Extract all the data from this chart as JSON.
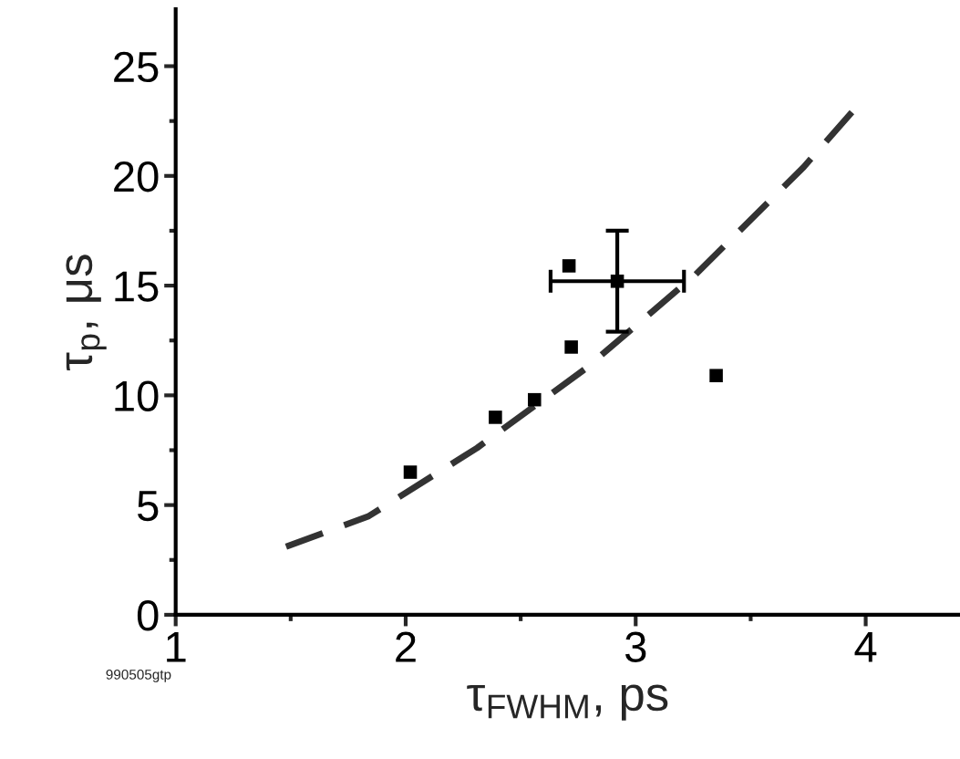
{
  "chart_data": {
    "type": "scatter",
    "xlabel": "τ$_{FWHM}$, ps",
    "ylabel": "τ$_{p}$, μs",
    "annotations": [
      "990505gtp"
    ],
    "marker": "square",
    "grid": false,
    "legend": false,
    "xlim": [
      1,
      4.41
    ],
    "ylim": [
      0,
      27.6
    ],
    "xticks": [
      1,
      {
        "value": 1.5,
        "label": null
      },
      2,
      {
        "value": 2.5,
        "label": null
      },
      3,
      {
        "value": 3.5,
        "label": null
      },
      4
    ],
    "yticks": [
      0,
      {
        "value": 2.5,
        "label": null
      },
      5,
      {
        "value": 7.5,
        "label": null
      },
      10,
      {
        "value": 12.5,
        "label": null
      },
      15,
      {
        "value": 17.5,
        "label": null
      },
      20,
      {
        "value": 22.5,
        "label": null
      },
      25
    ],
    "series": [
      {
        "color": "#000000",
        "x": [
          2.02,
          2.39,
          2.56,
          2.72,
          2.71,
          2.92,
          3.35
        ],
        "values": [
          6.5,
          9.0,
          9.8,
          12.2,
          15.9,
          15.2,
          10.9
        ],
        "errors": [
          null,
          null,
          null,
          null,
          null,
          2.3,
          null
        ],
        "xerrors": [
          null,
          null,
          null,
          null,
          null,
          0.29,
          null
        ]
      },
      {
        "type": "line",
        "color": "#333333",
        "line_style": "dashed",
        "marker": "none",
        "x": [
          1.48,
          1.84,
          2.31,
          2.78,
          3.26,
          3.73,
          3.94
        ],
        "values": [
          3.1,
          4.5,
          7.6,
          11.2,
          15.5,
          20.4,
          22.9
        ]
      }
    ]
  }
}
